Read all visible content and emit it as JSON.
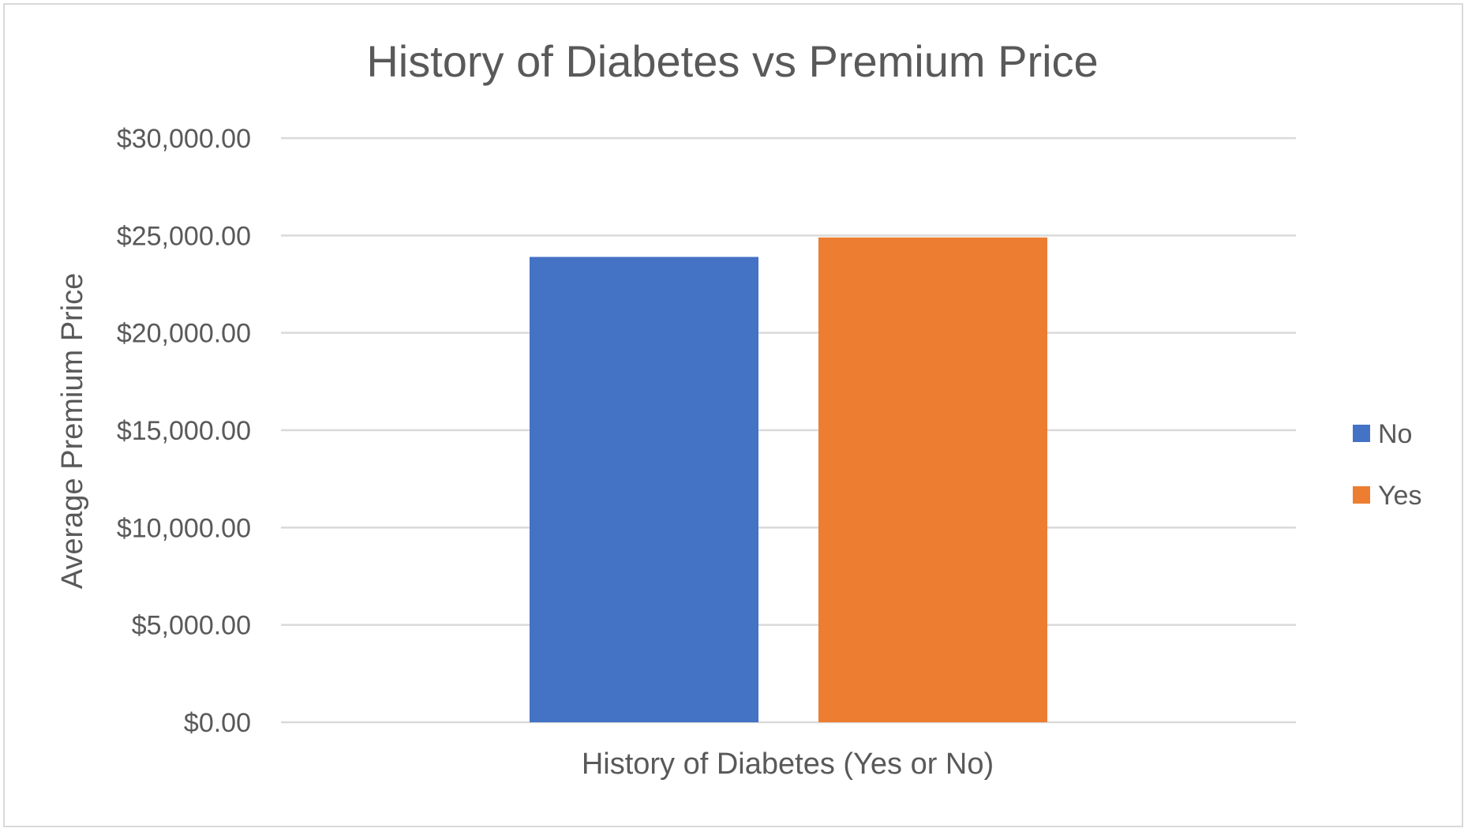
{
  "chart_data": {
    "type": "bar",
    "title": "History of Diabetes vs Premium Price",
    "xlabel": "History of Diabetes (Yes or No)",
    "ylabel": "Average Premium Price",
    "ylim": [
      0,
      30000
    ],
    "yticks": [
      {
        "value": 0,
        "label": "$0.00"
      },
      {
        "value": 5000,
        "label": "$5,000.00"
      },
      {
        "value": 10000,
        "label": "$10,000.00"
      },
      {
        "value": 15000,
        "label": "$15,000.00"
      },
      {
        "value": 20000,
        "label": "$20,000.00"
      },
      {
        "value": 25000,
        "label": "$25,000.00"
      },
      {
        "value": 30000,
        "label": "$30,000.00"
      }
    ],
    "grid": true,
    "legend_position": "right",
    "series": [
      {
        "name": "No",
        "values": [
          23900
        ],
        "color": "#4472C4"
      },
      {
        "name": "Yes",
        "values": [
          24900
        ],
        "color": "#ED7D31"
      }
    ]
  }
}
